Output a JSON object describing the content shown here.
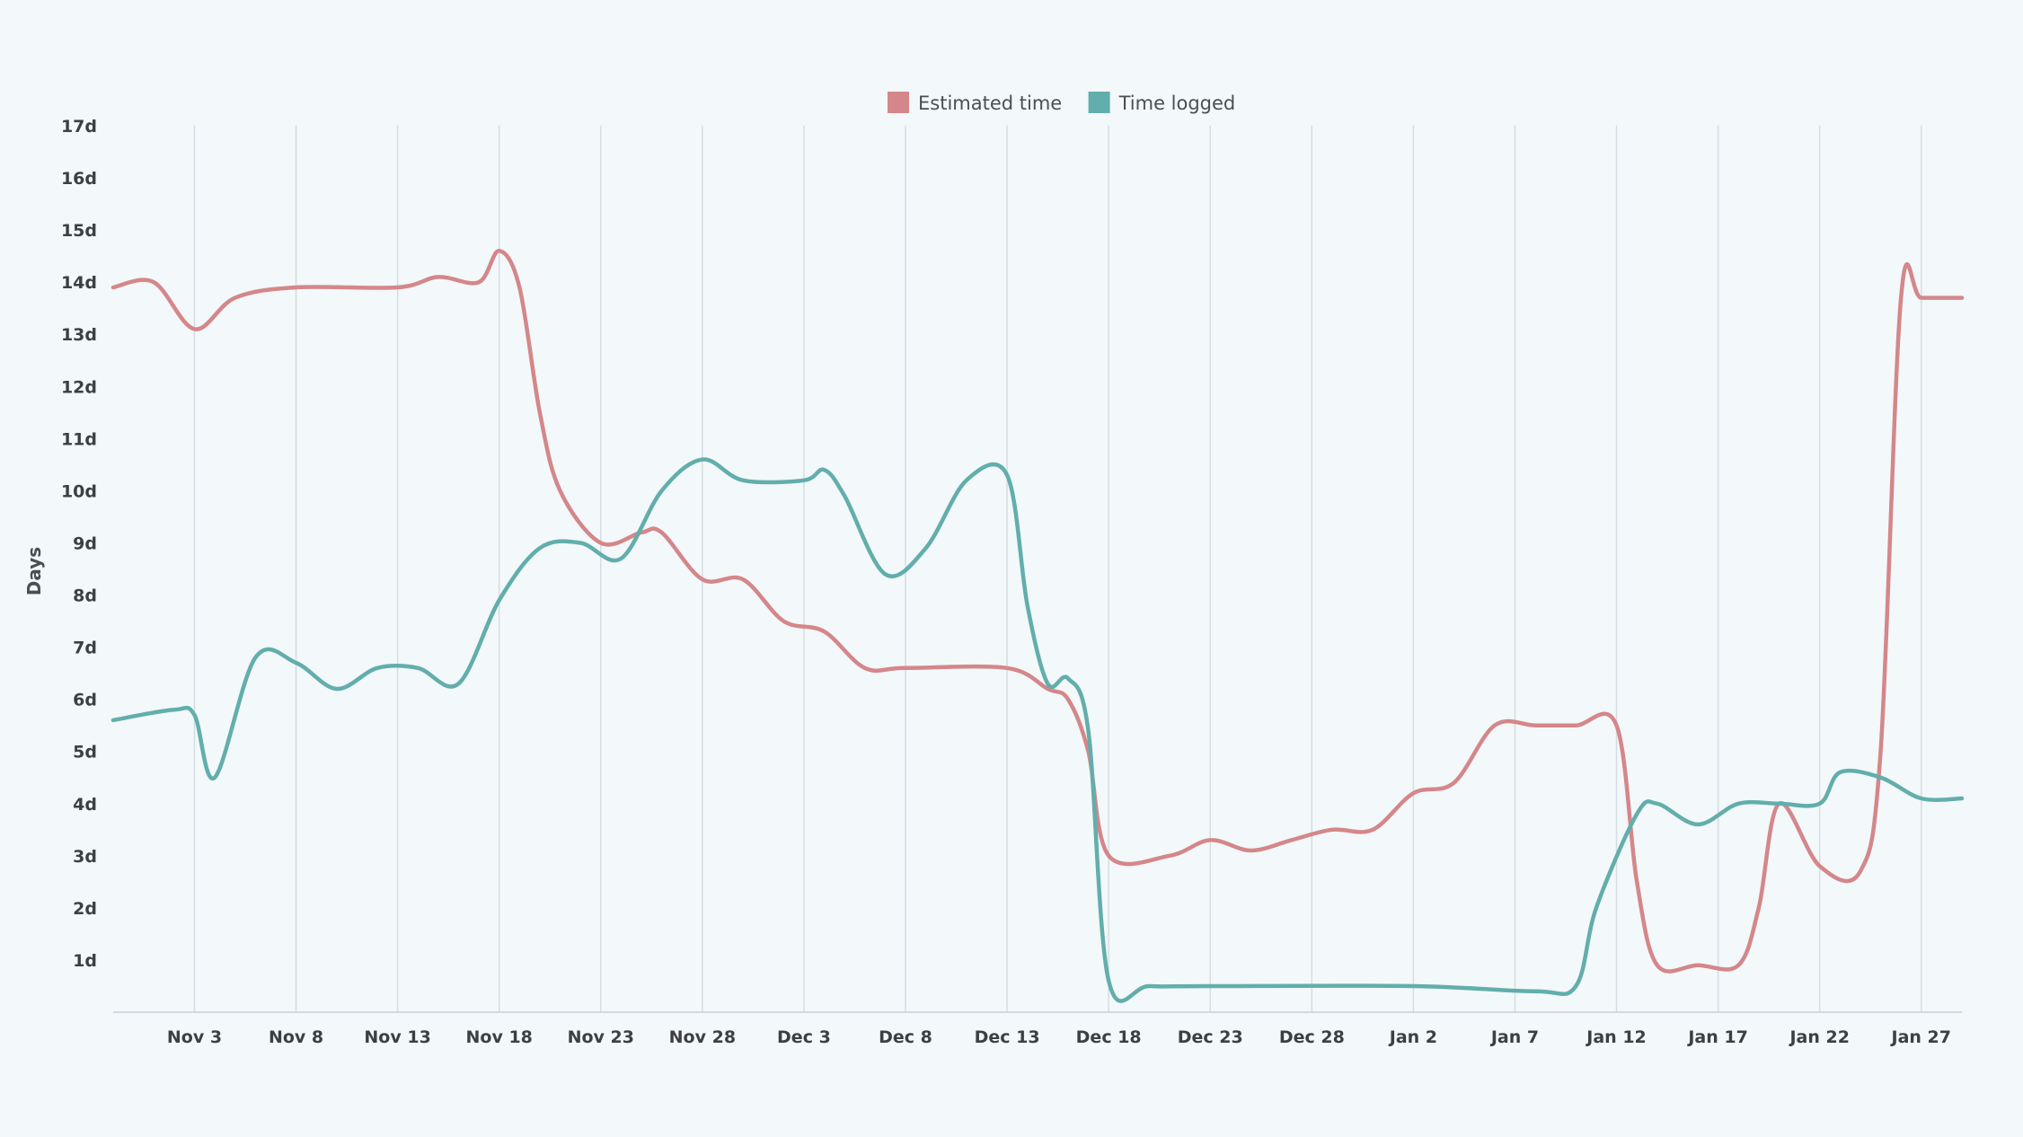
{
  "chart_data": {
    "type": "line",
    "ylabel": "Days",
    "xlabel": "",
    "title": "",
    "ylim": [
      0,
      17
    ],
    "y_ticks": [
      "1d",
      "2d",
      "3d",
      "4d",
      "5d",
      "6d",
      "7d",
      "8d",
      "9d",
      "10d",
      "11d",
      "12d",
      "13d",
      "14d",
      "15d",
      "16d",
      "17d"
    ],
    "x_tick_labels": [
      "Nov 3",
      "Nov 8",
      "Nov 13",
      "Nov 18",
      "Nov 23",
      "Nov 28",
      "Dec 3",
      "Dec 8",
      "Dec 13",
      "Dec 18",
      "Dec 23",
      "Dec 28",
      "Jan 2",
      "Jan 7",
      "Jan 12",
      "Jan 17",
      "Jan 22",
      "Jan 27"
    ],
    "x_range": [
      "Oct 30",
      "Jan 29"
    ],
    "grid": "vertical",
    "legend_position": "top-center",
    "series": [
      {
        "name": "Estimated time",
        "color": "#d4878a",
        "points": [
          [
            "Oct 30",
            13.9
          ],
          [
            "Nov 1",
            14.0
          ],
          [
            "Nov 3",
            13.1
          ],
          [
            "Nov 5",
            13.7
          ],
          [
            "Nov 8",
            13.9
          ],
          [
            "Nov 13",
            13.9
          ],
          [
            "Nov 15",
            14.1
          ],
          [
            "Nov 17",
            14.0
          ],
          [
            "Nov 18",
            14.6
          ],
          [
            "Nov 19",
            13.9
          ],
          [
            "Nov 20",
            11.5
          ],
          [
            "Nov 21",
            10.0
          ],
          [
            "Nov 23",
            9.0
          ],
          [
            "Nov 25",
            9.2
          ],
          [
            "Nov 26",
            9.2
          ],
          [
            "Nov 28",
            8.3
          ],
          [
            "Nov 30",
            8.3
          ],
          [
            "Dec 2",
            7.5
          ],
          [
            "Dec 4",
            7.3
          ],
          [
            "Dec 6",
            6.6
          ],
          [
            "Dec 8",
            6.6
          ],
          [
            "Dec 13",
            6.6
          ],
          [
            "Dec 15",
            6.2
          ],
          [
            "Dec 16",
            6.0
          ],
          [
            "Dec 17",
            5.0
          ],
          [
            "Dec 18",
            3.0
          ],
          [
            "Dec 21",
            3.0
          ],
          [
            "Dec 23",
            3.3
          ],
          [
            "Dec 25",
            3.1
          ],
          [
            "Dec 27",
            3.3
          ],
          [
            "Dec 29",
            3.5
          ],
          [
            "Dec 31",
            3.5
          ],
          [
            "Jan 2",
            4.2
          ],
          [
            "Jan 4",
            4.4
          ],
          [
            "Jan 6",
            5.5
          ],
          [
            "Jan 8",
            5.5
          ],
          [
            "Jan 10",
            5.5
          ],
          [
            "Jan 12",
            5.5
          ],
          [
            "Jan 13",
            2.5
          ],
          [
            "Jan 14",
            0.9
          ],
          [
            "Jan 16",
            0.9
          ],
          [
            "Jan 18",
            0.9
          ],
          [
            "Jan 19",
            2.0
          ],
          [
            "Jan 20",
            4.0
          ],
          [
            "Jan 22",
            2.8
          ],
          [
            "Jan 24",
            2.7
          ],
          [
            "Jan 25",
            5.0
          ],
          [
            "Jan 26",
            13.7
          ],
          [
            "Jan 27",
            13.7
          ],
          [
            "Jan 29",
            13.7
          ]
        ]
      },
      {
        "name": "Time logged",
        "color": "#62aeac",
        "points": [
          [
            "Oct 30",
            5.6
          ],
          [
            "Nov 2",
            5.8
          ],
          [
            "Nov 3",
            5.7
          ],
          [
            "Nov 4",
            4.5
          ],
          [
            "Nov 6",
            6.8
          ],
          [
            "Nov 8",
            6.7
          ],
          [
            "Nov 10",
            6.2
          ],
          [
            "Nov 12",
            6.6
          ],
          [
            "Nov 14",
            6.6
          ],
          [
            "Nov 16",
            6.3
          ],
          [
            "Nov 18",
            7.9
          ],
          [
            "Nov 20",
            8.9
          ],
          [
            "Nov 22",
            9.0
          ],
          [
            "Nov 24",
            8.7
          ],
          [
            "Nov 26",
            10.0
          ],
          [
            "Nov 28",
            10.6
          ],
          [
            "Nov 30",
            10.2
          ],
          [
            "Dec 3",
            10.2
          ],
          [
            "Dec 4",
            10.4
          ],
          [
            "Dec 5",
            9.9
          ],
          [
            "Dec 7",
            8.4
          ],
          [
            "Dec 9",
            8.9
          ],
          [
            "Dec 11",
            10.2
          ],
          [
            "Dec 13",
            10.3
          ],
          [
            "Dec 14",
            7.8
          ],
          [
            "Dec 15",
            6.3
          ],
          [
            "Dec 16",
            6.4
          ],
          [
            "Dec 17",
            5.4
          ],
          [
            "Dec 18",
            0.6
          ],
          [
            "Dec 20",
            0.5
          ],
          [
            "Dec 23",
            0.5
          ],
          [
            "Jan 2",
            0.5
          ],
          [
            "Jan 8",
            0.4
          ],
          [
            "Jan 10",
            0.5
          ],
          [
            "Jan 11",
            2.0
          ],
          [
            "Jan 13",
            3.8
          ],
          [
            "Jan 14",
            4.0
          ],
          [
            "Jan 16",
            3.6
          ],
          [
            "Jan 18",
            4.0
          ],
          [
            "Jan 20",
            4.0
          ],
          [
            "Jan 22",
            4.0
          ],
          [
            "Jan 23",
            4.6
          ],
          [
            "Jan 25",
            4.5
          ],
          [
            "Jan 27",
            4.1
          ],
          [
            "Jan 29",
            4.1
          ]
        ]
      }
    ]
  }
}
